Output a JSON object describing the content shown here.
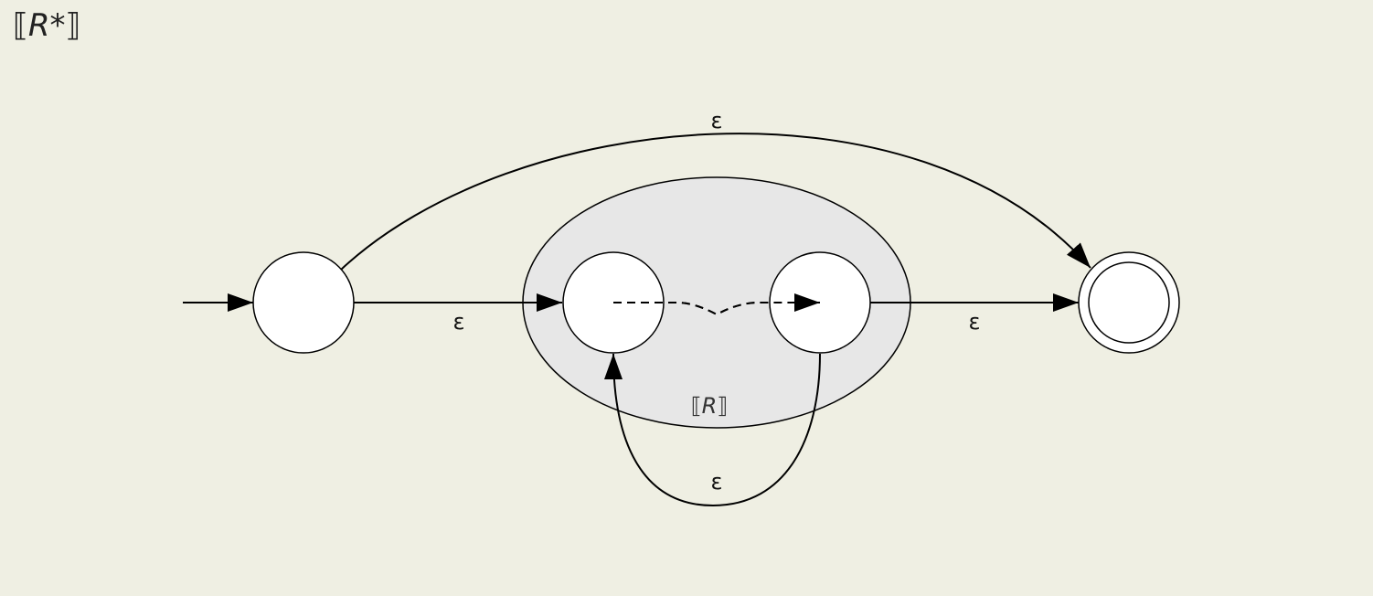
{
  "title": {
    "open": "⟦",
    "var": "R",
    "star": "*",
    "close": "⟧"
  },
  "diagram": {
    "subautomaton_label": {
      "open": "⟦",
      "var": "R",
      "close": "⟧"
    },
    "edges": {
      "skip": "ε",
      "enter": "ε",
      "exit": "ε",
      "loop_back": "ε"
    }
  }
}
